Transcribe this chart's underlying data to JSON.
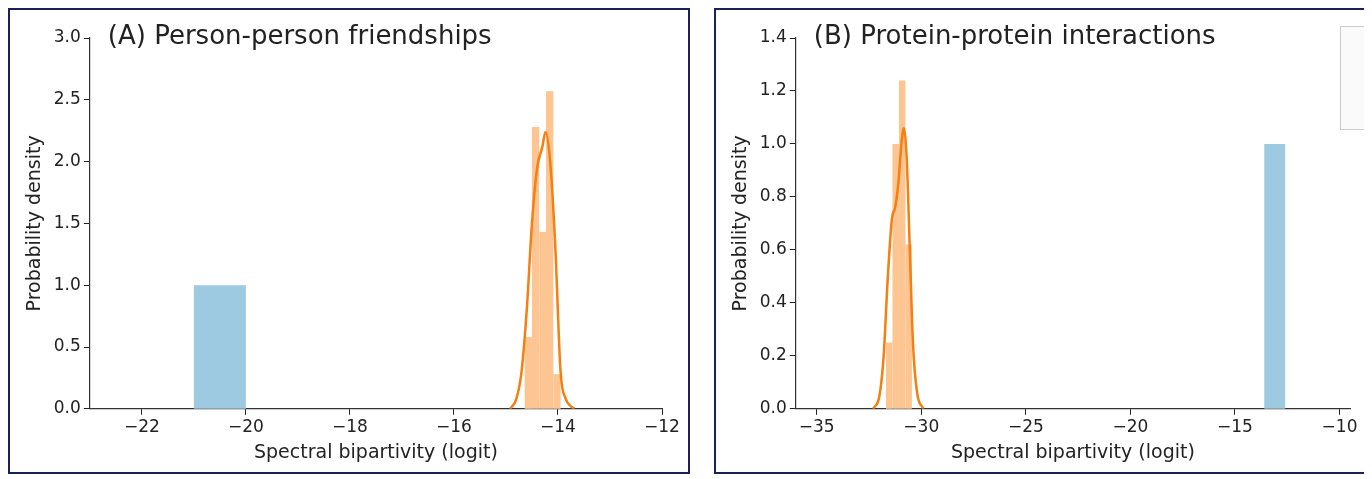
{
  "chart_data": [
    {
      "type": "histogram",
      "title": "(A) Person-person friendships",
      "xlabel": "Spectral bipartivity (logit)",
      "ylabel": "Probability density",
      "xlim": [
        -23,
        -12
      ],
      "xticks": [
        {
          "value": -22,
          "label": "−22"
        },
        {
          "value": -20,
          "label": "−20"
        },
        {
          "value": -18,
          "label": "−18"
        },
        {
          "value": -16,
          "label": "−16"
        },
        {
          "value": -14,
          "label": "−14"
        },
        {
          "value": -12,
          "label": "−12"
        }
      ],
      "ylim": [
        0,
        3
      ],
      "yticks": [
        {
          "value": 0,
          "label": "0.0"
        },
        {
          "value": 0.5,
          "label": "0.5"
        },
        {
          "value": 1,
          "label": "1.0"
        },
        {
          "value": 1.5,
          "label": "1.5"
        },
        {
          "value": 2,
          "label": "2.0"
        },
        {
          "value": 2.5,
          "label": "2.5"
        },
        {
          "value": 3,
          "label": "3.0"
        }
      ],
      "grid": false,
      "series": [
        {
          "type": "histogram",
          "color": "#9ecae1",
          "bins": [
            -21,
            -20
          ],
          "values": [
            1.0
          ]
        },
        {
          "type": "histogram",
          "color": "#fdc592",
          "bins": [
            -14.64,
            -14.5,
            -14.36,
            -14.23,
            -14.09,
            -13.95
          ],
          "values": [
            0.58,
            2.28,
            1.43,
            2.57,
            0.28
          ]
        },
        {
          "type": "line",
          "color": "#f57f0f",
          "x": [
            -14.92,
            -14.8,
            -14.7,
            -14.6,
            -14.5,
            -14.4,
            -14.3,
            -14.24,
            -14.15,
            -14.05,
            -13.95,
            -13.85,
            -13.75,
            -13.68
          ],
          "values": [
            0,
            0.08,
            0.3,
            0.8,
            1.5,
            1.95,
            2.12,
            2.24,
            2.0,
            1.3,
            0.3,
            0.08,
            0.02,
            0
          ]
        }
      ]
    },
    {
      "type": "histogram",
      "title": "(B) Protein-protein interactions",
      "xlabel": "Spectral bipartivity (logit)",
      "ylabel": "Probability density",
      "xlim": [
        -36,
        -9.5
      ],
      "xticks": [
        {
          "value": -35,
          "label": "−35"
        },
        {
          "value": -30,
          "label": "−30"
        },
        {
          "value": -25,
          "label": "−25"
        },
        {
          "value": -20,
          "label": "−20"
        },
        {
          "value": -15,
          "label": "−15"
        },
        {
          "value": -10,
          "label": "−10"
        }
      ],
      "ylim": [
        0,
        1.4
      ],
      "yticks": [
        {
          "value": 0,
          "label": "0.0"
        },
        {
          "value": 0.2,
          "label": "0.2"
        },
        {
          "value": 0.4,
          "label": "0.4"
        },
        {
          "value": 0.6,
          "label": "0.6"
        },
        {
          "value": 0.8,
          "label": "0.8"
        },
        {
          "value": 1,
          "label": "1.0"
        },
        {
          "value": 1.2,
          "label": "1.2"
        },
        {
          "value": 1.4,
          "label": "1.4"
        }
      ],
      "grid": false,
      "series": [
        {
          "type": "histogram",
          "color": "#9ecae1",
          "bins": [
            -13.6,
            -12.6
          ],
          "values": [
            1.0
          ]
        },
        {
          "type": "histogram",
          "color": "#fdc592",
          "bins": [
            -31.69,
            -31.38,
            -31.07,
            -30.76,
            -30.45
          ],
          "values": [
            0.25,
            1.0,
            1.24,
            0.62
          ]
        },
        {
          "type": "line",
          "color": "#f57f0f",
          "x": [
            -32.3,
            -32.0,
            -31.8,
            -31.6,
            -31.4,
            -31.25,
            -31.1,
            -30.95,
            -30.83,
            -30.7,
            -30.55,
            -30.4,
            -30.2,
            -29.9
          ],
          "values": [
            0,
            0.05,
            0.2,
            0.5,
            0.72,
            0.76,
            0.85,
            1.0,
            1.06,
            0.95,
            0.6,
            0.25,
            0.06,
            0
          ]
        }
      ]
    }
  ]
}
